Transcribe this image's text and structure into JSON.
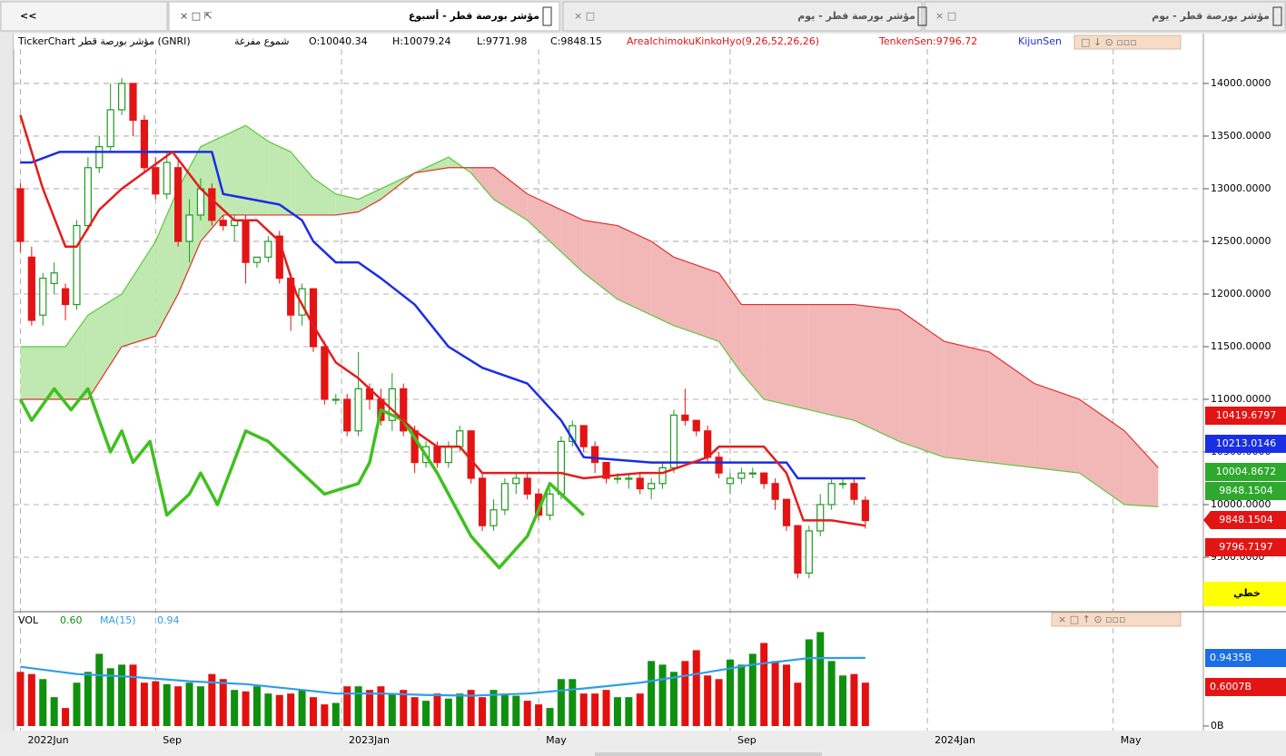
{
  "nav": "<<",
  "tabs": [
    "مؤشر بورصة قطر - أسبوع",
    "مؤشر بورصة قطر - يوم",
    "مؤشر بورصة قطر - يوم"
  ],
  "info": {
    "symbol": "TickerChart مؤشر بورصة قطر (GNRI)",
    "style": "شموع مفرغة",
    "open": "O:10040.34",
    "high": "H:10079.24",
    "low": "L:9771.98",
    "close": "C:9848.15",
    "indicator": "AreaIchimokuKinkoHyo(9,26,52,26,26)",
    "tenken": "TenkenSen:9796.72",
    "kijun": "KijunSen"
  },
  "linear_label": "خطي",
  "chart_data": [
    {
      "type": "candlestick",
      "up_color": "#1f9a1f",
      "down_color": "#e31414",
      "grid": true,
      "xlim": [
        -0.6,
        105
      ],
      "ylim": [
        9000,
        14465
      ],
      "yticks": [
        {
          "value": 9500,
          "label": "9500.0000"
        },
        {
          "value": 10000,
          "label": "10000.0000"
        },
        {
          "value": 10500,
          "label": "10500.0000"
        },
        {
          "value": 11000,
          "label": "11000.0000"
        },
        {
          "value": 11500,
          "label": "11500.0000"
        },
        {
          "value": 12000,
          "label": "12000.0000"
        },
        {
          "value": 12500,
          "label": "12500.0000"
        },
        {
          "value": 13000,
          "label": "13000.0000"
        },
        {
          "value": 13500,
          "label": "13500.0000"
        },
        {
          "value": 14000,
          "label": "14000.0000"
        }
      ],
      "xticks": [
        {
          "value": 0,
          "label": "2022Jun"
        },
        {
          "value": 12,
          "label": "Sep"
        },
        {
          "value": 28.5,
          "label": "2023Jan"
        },
        {
          "value": 46,
          "label": "May"
        },
        {
          "value": 63,
          "label": "Sep"
        },
        {
          "value": 80.5,
          "label": "2024Jan"
        },
        {
          "value": 97,
          "label": "May"
        }
      ],
      "candles": [
        [
          13000,
          13050,
          12400,
          12500
        ],
        [
          12350,
          12450,
          11700,
          11750
        ],
        [
          11800,
          12200,
          11700,
          12150
        ],
        [
          12100,
          12300,
          12000,
          12200
        ],
        [
          12050,
          12100,
          11750,
          11900
        ],
        [
          11900,
          12700,
          11850,
          12650
        ],
        [
          12650,
          13300,
          12600,
          13200
        ],
        [
          13200,
          13500,
          13150,
          13400
        ],
        [
          13400,
          14000,
          13350,
          13750
        ],
        [
          13750,
          14050,
          13700,
          14000
        ],
        [
          14000,
          14000,
          13500,
          13650
        ],
        [
          13650,
          13700,
          13150,
          13200
        ],
        [
          13200,
          13300,
          12900,
          12950
        ],
        [
          12950,
          13350,
          12900,
          13250
        ],
        [
          13200,
          13300,
          12450,
          12500
        ],
        [
          12500,
          12900,
          12300,
          12750
        ],
        [
          12750,
          13100,
          12700,
          13000
        ],
        [
          13000,
          13050,
          12650,
          12700
        ],
        [
          12700,
          12750,
          12600,
          12650
        ],
        [
          12650,
          12750,
          12500,
          12700
        ],
        [
          12700,
          12750,
          12100,
          12300
        ],
        [
          12300,
          12350,
          12250,
          12350
        ],
        [
          12350,
          12550,
          12300,
          12500
        ],
        [
          12550,
          12600,
          12100,
          12150
        ],
        [
          12150,
          12200,
          11650,
          11800
        ],
        [
          11800,
          12100,
          11700,
          12050
        ],
        [
          12050,
          12050,
          11450,
          11500
        ],
        [
          11500,
          11550,
          10950,
          11000
        ],
        [
          11000,
          11050,
          10950,
          11000
        ],
        [
          11000,
          11050,
          10650,
          10700
        ],
        [
          10700,
          11450,
          10650,
          11100
        ],
        [
          11100,
          11150,
          10900,
          11000
        ],
        [
          11000,
          11100,
          10750,
          10800
        ],
        [
          10800,
          11250,
          10700,
          11100
        ],
        [
          11100,
          11150,
          10650,
          10700
        ],
        [
          10700,
          10750,
          10300,
          10400
        ],
        [
          10400,
          10600,
          10350,
          10550
        ],
        [
          10550,
          10600,
          10350,
          10400
        ],
        [
          10400,
          10600,
          10350,
          10550
        ],
        [
          10550,
          10750,
          10500,
          10700
        ],
        [
          10700,
          10700,
          10200,
          10250
        ],
        [
          10250,
          10300,
          9750,
          9800
        ],
        [
          9800,
          10050,
          9750,
          9950
        ],
        [
          9950,
          10250,
          9900,
          10200
        ],
        [
          10200,
          10300,
          10100,
          10250
        ],
        [
          10250,
          10300,
          10050,
          10100
        ],
        [
          10100,
          10150,
          9850,
          9900
        ],
        [
          9900,
          10150,
          9850,
          10100
        ],
        [
          10100,
          10650,
          10050,
          10600
        ],
        [
          10600,
          10800,
          10550,
          10750
        ],
        [
          10750,
          10750,
          10500,
          10550
        ],
        [
          10550,
          10600,
          10300,
          10400
        ],
        [
          10400,
          10400,
          10200,
          10250
        ],
        [
          10250,
          10300,
          10200,
          10250
        ],
        [
          10250,
          10300,
          10150,
          10250
        ],
        [
          10250,
          10300,
          10100,
          10150
        ],
        [
          10150,
          10250,
          10050,
          10200
        ],
        [
          10200,
          10400,
          10150,
          10350
        ],
        [
          10350,
          10900,
          10300,
          10850
        ],
        [
          10850,
          11100,
          10750,
          10800
        ],
        [
          10800,
          10800,
          10650,
          10700
        ],
        [
          10700,
          10750,
          10400,
          10450
        ],
        [
          10450,
          10500,
          10250,
          10300
        ],
        [
          10200,
          10300,
          10100,
          10250
        ],
        [
          10250,
          10350,
          10200,
          10300
        ],
        [
          10300,
          10350,
          10250,
          10300
        ],
        [
          10300,
          10300,
          10150,
          10200
        ],
        [
          10200,
          10250,
          9950,
          10050
        ],
        [
          10050,
          10050,
          9750,
          9800
        ],
        [
          9800,
          9800,
          9300,
          9350
        ],
        [
          9350,
          9800,
          9300,
          9750
        ],
        [
          9750,
          10100,
          9700,
          10000
        ],
        [
          10000,
          10250,
          9950,
          10200
        ],
        [
          10200,
          10250,
          10150,
          10200
        ],
        [
          10200,
          10250,
          10000,
          10050
        ],
        [
          10040.34,
          10079.24,
          9771.98,
          9848.15
        ]
      ],
      "cloud": {
        "up_color": "#bfe9b0",
        "down_color": "#f2b8b8",
        "span_a_color": "#5dc83a",
        "span_b_color": "#e03030",
        "x": [
          0,
          4,
          6,
          9,
          12,
          14,
          16,
          18,
          20,
          22,
          24,
          26,
          28,
          30,
          32,
          35,
          38,
          40,
          42,
          45,
          48,
          50,
          53,
          56,
          58,
          62,
          64,
          66,
          70,
          74,
          78,
          82,
          86,
          90,
          94,
          98,
          101
        ],
        "span_a": [
          11500,
          11500,
          11800,
          12000,
          12500,
          13000,
          13400,
          13500,
          13600,
          13450,
          13350,
          13100,
          12950,
          12900,
          13000,
          13150,
          13300,
          13150,
          12900,
          12700,
          12400,
          12200,
          11950,
          11800,
          11700,
          11550,
          11250,
          11000,
          10900,
          10800,
          10600,
          10450,
          10400,
          10350,
          10300,
          10000,
          9980
        ],
        "span_b": [
          11000,
          11000,
          11000,
          11500,
          11600,
          12000,
          12500,
          12750,
          12750,
          12750,
          12750,
          12750,
          12750,
          12780,
          12900,
          13150,
          13200,
          13200,
          13200,
          12950,
          12800,
          12700,
          12650,
          12500,
          12350,
          12200,
          11900,
          11900,
          11900,
          11900,
          11850,
          11550,
          11450,
          11150,
          11000,
          10700,
          10350
        ]
      },
      "series": [
        {
          "color": "#40c020",
          "width": 3.5,
          "x": [
            0,
            1,
            3,
            4.5,
            6,
            8,
            9,
            10,
            11.5,
            13,
            15,
            16,
            17.5,
            20,
            22,
            25,
            27,
            30,
            31,
            32,
            34,
            37,
            38.5,
            40,
            42.5,
            45,
            47,
            50
          ],
          "values": [
            11000,
            10800,
            11100,
            10900,
            11100,
            10500,
            10700,
            10400,
            10600,
            9900,
            10100,
            10300,
            10000,
            10700,
            10600,
            10300,
            10100,
            10200,
            10400,
            10900,
            10800,
            10300,
            10000,
            9700,
            9400,
            9700,
            10200,
            9900
          ]
        },
        {
          "color": "#1a2ee6",
          "width": 2.5,
          "x": [
            0,
            1,
            3.5,
            17,
            18,
            23,
            25,
            26,
            28,
            30,
            32,
            35,
            38,
            41,
            45,
            48,
            50,
            56,
            68,
            69,
            75
          ],
          "values": [
            13250,
            13250,
            13350,
            13350,
            12950,
            12850,
            12700,
            12500,
            12300,
            12300,
            12150,
            11900,
            11500,
            11300,
            11150,
            10800,
            10450,
            10400,
            10400,
            10250,
            10250
          ]
        },
        {
          "color": "#e51c1c",
          "width": 2.5,
          "x": [
            0,
            2,
            4,
            5,
            7,
            9,
            13.5,
            16,
            19,
            21,
            23,
            24.5,
            26,
            28,
            30,
            32,
            35,
            37,
            39,
            41,
            48,
            50,
            55,
            57,
            61,
            62,
            66,
            68,
            69.5,
            72,
            75
          ],
          "values": [
            13700,
            13000,
            12450,
            12450,
            12800,
            13000,
            13350,
            13000,
            12700,
            12700,
            12500,
            12000,
            11700,
            11350,
            11200,
            11000,
            10700,
            10550,
            10550,
            10300,
            10300,
            10250,
            10300,
            10300,
            10450,
            10550,
            10550,
            10300,
            9850,
            9850,
            9800
          ]
        }
      ],
      "price_tags": [
        {
          "value": 10419.6797,
          "color": "#e31414"
        },
        {
          "value": 10213.0146,
          "color": "#1a2ee6"
        },
        {
          "value": 10004.8672,
          "color": "#2ea82e"
        },
        {
          "value": 9848.1504,
          "color": "#2ea82e"
        },
        {
          "value": 9848.1504,
          "color": "#e31414"
        },
        {
          "value": 9796.7197,
          "color": "#e31414"
        }
      ]
    },
    {
      "type": "bar",
      "label": "VOL",
      "last": "0.60",
      "ma_label": "MA(15)",
      "ma_last": "0.94",
      "up_color": "#0f900f",
      "down_color": "#e31010",
      "ylim": [
        0,
        1.57
      ],
      "yticks": [
        {
          "value": 0,
          "label": "0B"
        }
      ],
      "values": [
        0.75,
        0.72,
        0.65,
        0.4,
        0.25,
        0.6,
        0.75,
        1.0,
        0.8,
        0.85,
        0.85,
        0.6,
        0.62,
        0.58,
        0.55,
        0.6,
        0.55,
        0.72,
        0.65,
        0.5,
        0.48,
        0.55,
        0.45,
        0.43,
        0.45,
        0.5,
        0.4,
        0.3,
        0.32,
        0.55,
        0.55,
        0.5,
        0.55,
        0.45,
        0.5,
        0.4,
        0.35,
        0.45,
        0.38,
        0.45,
        0.5,
        0.4,
        0.5,
        0.45,
        0.42,
        0.35,
        0.3,
        0.25,
        0.65,
        0.65,
        0.45,
        0.45,
        0.5,
        0.4,
        0.4,
        0.45,
        0.9,
        0.85,
        0.75,
        0.9,
        1.05,
        0.7,
        0.65,
        0.92,
        0.85,
        1.0,
        1.15,
        0.9,
        0.85,
        0.6,
        1.2,
        1.3,
        0.9,
        0.7,
        0.72,
        0.6007
      ],
      "ma": {
        "color": "#2f9ee8",
        "x": [
          0,
          5,
          10,
          15,
          20,
          25,
          28,
          32,
          36,
          40,
          45,
          50,
          55,
          60,
          65,
          70,
          75
        ],
        "values": [
          0.82,
          0.72,
          0.68,
          0.62,
          0.58,
          0.5,
          0.45,
          0.45,
          0.43,
          0.42,
          0.45,
          0.52,
          0.6,
          0.72,
          0.85,
          0.94,
          0.9435
        ]
      },
      "tags": [
        {
          "value": 0.9435,
          "label": "0.9435B",
          "color": "#1a6ee6"
        },
        {
          "value": 0.6007,
          "label": "0.6007B",
          "color": "#e31414"
        }
      ]
    }
  ]
}
